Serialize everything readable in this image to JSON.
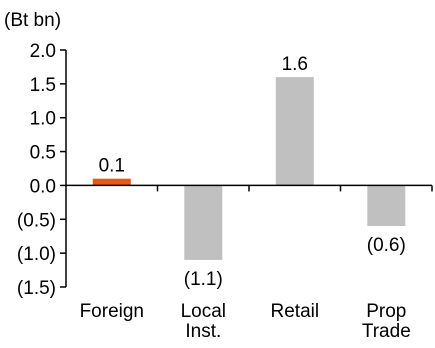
{
  "chart_data": {
    "type": "bar",
    "unit_label": "(Bt bn)",
    "categories": [
      {
        "lines": [
          "Foreign"
        ]
      },
      {
        "lines": [
          "Local",
          "Inst."
        ]
      },
      {
        "lines": [
          "Retail"
        ]
      },
      {
        "lines": [
          "Prop",
          "Trade"
        ]
      }
    ],
    "values": [
      0.1,
      -1.1,
      1.6,
      -0.6
    ],
    "data_labels": [
      "0.1",
      "(1.1)",
      "1.6",
      "(0.6)"
    ],
    "bar_colors": [
      "#E8561C",
      "#C0C0C0",
      "#C0C0C0",
      "#C0C0C0"
    ],
    "y_ticks": [
      {
        "value": 2.0,
        "label": "2.0"
      },
      {
        "value": 1.5,
        "label": "1.5"
      },
      {
        "value": 1.0,
        "label": "1.0"
      },
      {
        "value": 0.5,
        "label": "0.5"
      },
      {
        "value": 0.0,
        "label": "0.0"
      },
      {
        "value": -0.5,
        "label": "(0.5)"
      },
      {
        "value": -1.0,
        "label": "(1.0)"
      },
      {
        "value": -1.5,
        "label": "(1.5)"
      }
    ],
    "ylim": [
      -1.5,
      2.0
    ],
    "grid": false,
    "legend": "none"
  }
}
